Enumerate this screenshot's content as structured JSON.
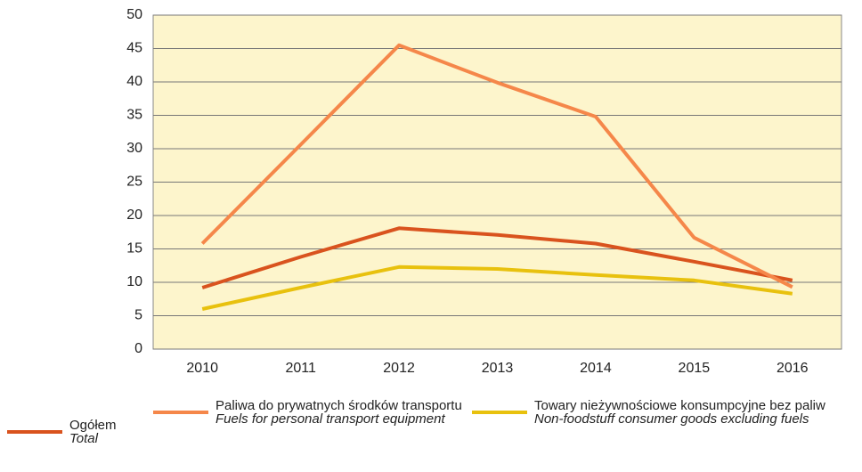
{
  "chart_data": {
    "type": "line",
    "categories": [
      "2010",
      "2011",
      "2012",
      "2013",
      "2014",
      "2015",
      "2016"
    ],
    "series": [
      {
        "name": "Ogółem",
        "name_en": "Total",
        "color": "#d9531e",
        "values": [
          9.2,
          13.8,
          18.1,
          17.1,
          15.8,
          13.1,
          10.3
        ]
      },
      {
        "name": "Paliwa do prywatnych środków transportu",
        "name_en": "Fuels for personal transport equipment",
        "color": "#f5874a",
        "values": [
          15.8,
          30.6,
          45.5,
          39.9,
          34.8,
          16.7,
          9.3
        ]
      },
      {
        "name": "Towary nieżywnościowe konsumpcyjne bez paliw",
        "name_en": "Non-foodstuff consumer goods excluding fuels",
        "color": "#e8c10e",
        "values": [
          6.0,
          9.2,
          12.3,
          12.0,
          11.1,
          10.3,
          8.3
        ]
      }
    ],
    "ylim": [
      0,
      50
    ],
    "yticks": [
      0,
      5,
      10,
      15,
      20,
      25,
      30,
      35,
      40,
      45,
      50
    ],
    "grid": true
  }
}
